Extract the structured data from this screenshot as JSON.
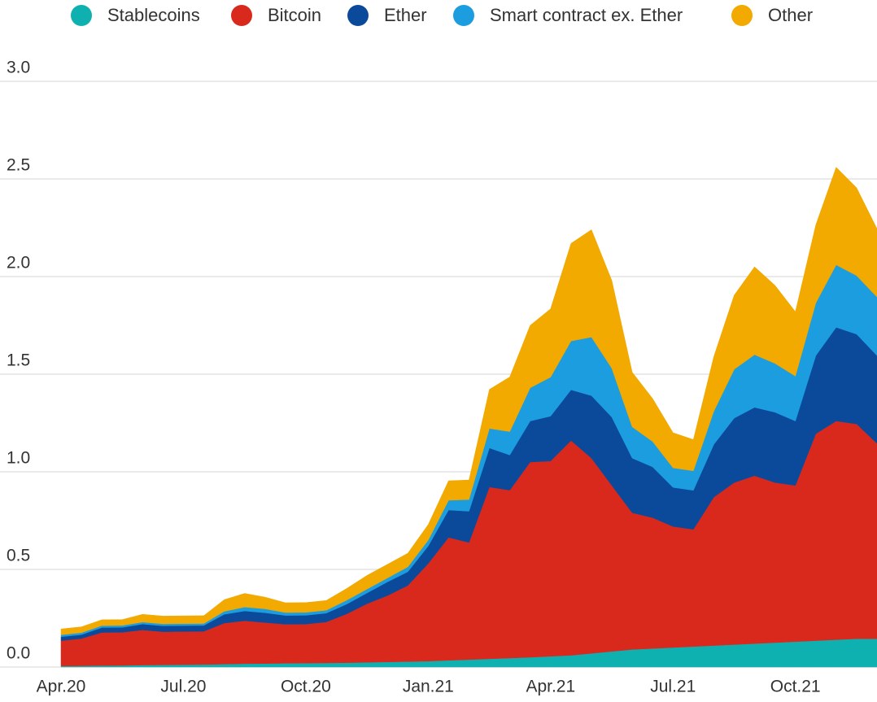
{
  "chart_data": {
    "type": "stacked_area",
    "categories": [
      "Apr.20",
      null,
      null,
      null,
      null,
      null,
      "Jul.20",
      null,
      null,
      null,
      null,
      null,
      "Oct.20",
      null,
      null,
      null,
      null,
      null,
      "Jan.21",
      null,
      null,
      null,
      null,
      null,
      "Apr.21",
      null,
      null,
      null,
      null,
      null,
      "Jul.21",
      null,
      null,
      null,
      null,
      null,
      "Oct.21",
      null,
      null,
      null,
      null
    ],
    "series": [
      {
        "name": "Stablecoins",
        "color": "#0fb0b0",
        "values": [
          0.005,
          0.006,
          0.007,
          0.008,
          0.01,
          0.011,
          0.012,
          0.013,
          0.015,
          0.017,
          0.018,
          0.019,
          0.02,
          0.021,
          0.022,
          0.024,
          0.026,
          0.028,
          0.03,
          0.034,
          0.038,
          0.042,
          0.046,
          0.05,
          0.055,
          0.06,
          0.07,
          0.08,
          0.09,
          0.095,
          0.1,
          0.105,
          0.11,
          0.115,
          0.12,
          0.125,
          0.13,
          0.135,
          0.14,
          0.145,
          0.145
        ]
      },
      {
        "name": "Bitcoin",
        "color": "#d9291c",
        "values": [
          0.13,
          0.14,
          0.17,
          0.17,
          0.18,
          0.17,
          0.17,
          0.17,
          0.21,
          0.22,
          0.21,
          0.2,
          0.2,
          0.21,
          0.25,
          0.3,
          0.34,
          0.39,
          0.5,
          0.63,
          0.6,
          0.88,
          0.86,
          1.0,
          1.0,
          1.1,
          1.0,
          0.85,
          0.7,
          0.67,
          0.62,
          0.6,
          0.76,
          0.83,
          0.86,
          0.82,
          0.8,
          1.06,
          1.12,
          1.1,
          1.0
        ]
      },
      {
        "name": "Ether",
        "color": "#0b4a9a",
        "values": [
          0.02,
          0.02,
          0.025,
          0.025,
          0.03,
          0.03,
          0.03,
          0.03,
          0.045,
          0.05,
          0.05,
          0.045,
          0.045,
          0.045,
          0.05,
          0.055,
          0.07,
          0.07,
          0.09,
          0.14,
          0.16,
          0.2,
          0.18,
          0.21,
          0.23,
          0.26,
          0.32,
          0.35,
          0.28,
          0.26,
          0.2,
          0.2,
          0.27,
          0.33,
          0.35,
          0.36,
          0.33,
          0.4,
          0.48,
          0.46,
          0.45
        ]
      },
      {
        "name": "Smart contract ex. Ether",
        "color": "#1b9de0",
        "values": [
          0.01,
          0.01,
          0.01,
          0.01,
          0.01,
          0.01,
          0.01,
          0.01,
          0.015,
          0.02,
          0.02,
          0.015,
          0.015,
          0.015,
          0.02,
          0.02,
          0.02,
          0.025,
          0.03,
          0.05,
          0.06,
          0.1,
          0.12,
          0.17,
          0.2,
          0.25,
          0.3,
          0.25,
          0.16,
          0.13,
          0.1,
          0.1,
          0.17,
          0.25,
          0.27,
          0.25,
          0.23,
          0.27,
          0.32,
          0.3,
          0.3
        ]
      },
      {
        "name": "Other",
        "color": "#f2a900",
        "values": [
          0.03,
          0.03,
          0.03,
          0.03,
          0.04,
          0.04,
          0.04,
          0.04,
          0.06,
          0.07,
          0.06,
          0.05,
          0.05,
          0.05,
          0.06,
          0.07,
          0.07,
          0.07,
          0.08,
          0.1,
          0.1,
          0.2,
          0.28,
          0.32,
          0.35,
          0.5,
          0.55,
          0.45,
          0.28,
          0.22,
          0.18,
          0.16,
          0.28,
          0.38,
          0.45,
          0.4,
          0.33,
          0.4,
          0.5,
          0.45,
          0.35
        ]
      }
    ],
    "ylim": [
      0,
      3
    ],
    "yticks": [
      {
        "value": 0,
        "label": "0.0"
      },
      0.5,
      {
        "value": 1,
        "label": "1.0"
      },
      1.5,
      {
        "value": 2,
        "label": "2.0"
      },
      2.5,
      {
        "value": 3,
        "label": "3.0"
      }
    ],
    "grid": true,
    "legend": "top"
  }
}
